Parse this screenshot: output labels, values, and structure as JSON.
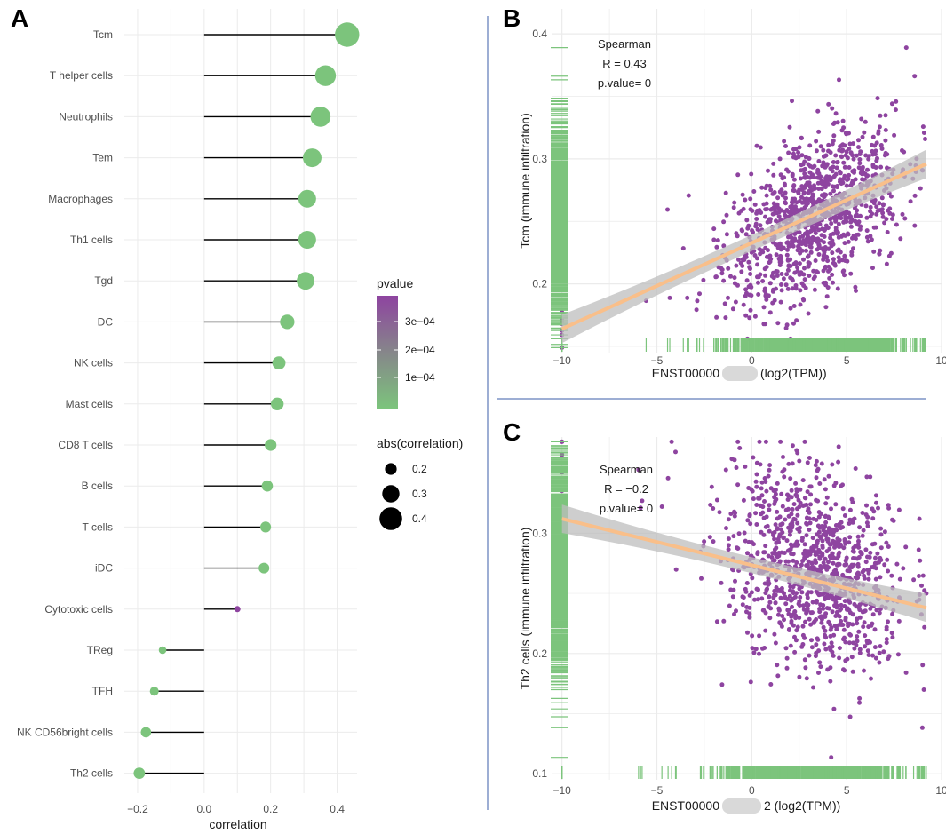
{
  "panel_labels": [
    "A",
    "B",
    "C"
  ],
  "colors": {
    "low": "#7cc47c",
    "high": "#8e44a0",
    "purple": "#8e44a0",
    "green": "#7cc47c",
    "fit": "#f9bf8a",
    "band": "#bdbdbd",
    "grid": "#ebebeb",
    "divider": "#3b5ea8"
  },
  "chart_data": [
    {
      "type": "scatter",
      "subtype": "lollipop",
      "xlabel": "correlation",
      "ylabel": "",
      "xlim": [
        -0.24,
        0.46
      ],
      "x_ticks": [
        -0.2,
        0.0,
        0.2,
        0.4
      ],
      "x_tick_labels": [
        "−0.2",
        "0.0",
        "0.2",
        "0.4"
      ],
      "grid": true,
      "categories": [
        "Tcm",
        "T helper cells",
        "Neutrophils",
        "Tem",
        "Macrophages",
        "Th1 cells",
        "Tgd",
        "DC",
        "NK cells",
        "Mast cells",
        "CD8 T cells",
        "B cells",
        "T cells",
        "iDC",
        "Cytotoxic cells",
        "TReg",
        "TFH",
        "NK CD56bright cells",
        "Th2 cells"
      ],
      "values": [
        0.43,
        0.365,
        0.35,
        0.325,
        0.31,
        0.31,
        0.305,
        0.25,
        0.225,
        0.22,
        0.2,
        0.19,
        0.185,
        0.18,
        0.1,
        -0.125,
        -0.15,
        -0.175,
        -0.195
      ],
      "pvalue_high": [
        false,
        false,
        false,
        false,
        false,
        false,
        false,
        false,
        false,
        false,
        false,
        false,
        false,
        false,
        true,
        false,
        false,
        false,
        false
      ],
      "legend_color": {
        "title": "pvalue",
        "labels": [
          "3e−04",
          "2e−04",
          "1e−04"
        ]
      },
      "legend_size": {
        "title": "abs(correlation)",
        "labels": [
          "0.2",
          "0.3",
          "0.4"
        ],
        "values": [
          0.2,
          0.3,
          0.4
        ]
      },
      "legend_position": "right"
    },
    {
      "type": "scatter",
      "xlabel_prefix": "ENST00000",
      "xlabel_suffix": "(log2(TPM))",
      "ylabel": "Tcm (immune infiltration)",
      "xlim": [
        -10.5,
        10
      ],
      "ylim": [
        0.145,
        0.42
      ],
      "x_ticks": [
        -10,
        -5,
        0,
        5,
        10
      ],
      "x_tick_labels": [
        "−10",
        "−5",
        "0",
        "5",
        "10"
      ],
      "y_ticks": [
        0.2,
        0.3,
        0.4
      ],
      "y_tick_labels": [
        "0.2",
        "0.3",
        "0.4"
      ],
      "annotation": [
        "Spearman",
        "R = 0.43",
        "p.value= 0"
      ],
      "fit_line": {
        "x": [
          -10,
          9.2
        ],
        "y": [
          0.164,
          0.296
        ]
      },
      "trend": {
        "slope": 0.0069,
        "x_center": 3.2,
        "y_center": 0.255,
        "y_sd": 0.032
      }
    },
    {
      "type": "scatter",
      "xlabel_prefix": "ENST00000",
      "xlabel_suffix": "2 (log2(TPM))",
      "ylabel": "Th2 cells (immune infiltration)",
      "xlim": [
        -10.5,
        10
      ],
      "ylim": [
        0.095,
        0.38
      ],
      "x_ticks": [
        -10,
        -5,
        0,
        5,
        10
      ],
      "x_tick_labels": [
        "−10",
        "−5",
        "0",
        "5",
        "10"
      ],
      "y_ticks": [
        0.1,
        0.2,
        0.3
      ],
      "y_tick_labels": [
        "0.1",
        "0.2",
        "0.3"
      ],
      "annotation": [
        "Spearman",
        "R = −0.2",
        "p.value= 0"
      ],
      "fit_line": {
        "x": [
          -10,
          9.2
        ],
        "y": [
          0.312,
          0.238
        ]
      },
      "trend": {
        "slope": -0.0039,
        "x_center": 3.2,
        "y_center": 0.27,
        "y_sd": 0.04
      }
    }
  ]
}
